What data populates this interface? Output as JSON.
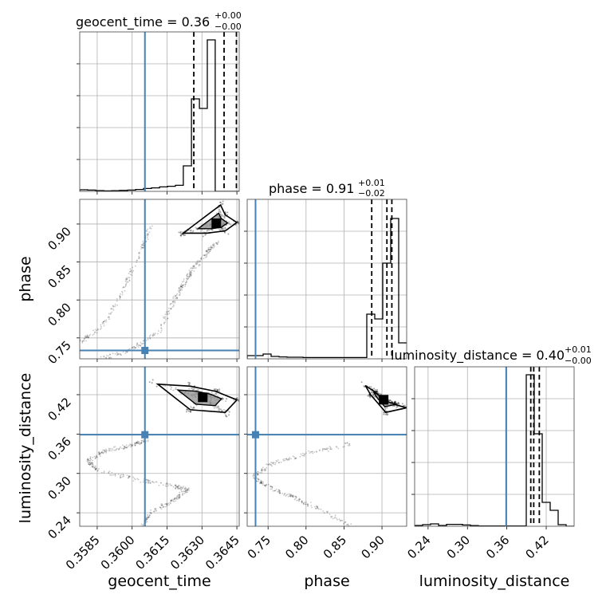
{
  "chart_data": {
    "type": "corner",
    "parameters": [
      "geocent_time",
      "phase",
      "luminosity_distance"
    ],
    "truths": {
      "geocent_time": 0.36055,
      "phase": 0.7335,
      "luminosity_distance": 0.359
    },
    "truth_color": "#4682b4",
    "grid": true,
    "titles": {
      "geocent_time": {
        "text": "geocent_time = 0.36",
        "plus": "+0.00",
        "minus": "−0.00"
      },
      "phase": {
        "text": "phase = 0.91",
        "plus": "+0.01",
        "minus": "−0.02"
      },
      "luminosity_distance": {
        "text": "luminosity_distance = 0.40",
        "plus": "+0.01",
        "minus": "−0.00"
      }
    },
    "axes": {
      "geocent_time": {
        "lim": [
          0.35775,
          0.3646
        ],
        "ticks": [
          0.3585,
          0.36,
          0.3615,
          0.363,
          0.3645
        ],
        "tick_labels": [
          "0.3585",
          "0.3600",
          "0.3615",
          "0.3630",
          "0.3645"
        ]
      },
      "phase": {
        "lim": [
          0.7225,
          0.9325
        ],
        "ticks": [
          0.75,
          0.8,
          0.85,
          0.9
        ],
        "tick_labels": [
          "0.75",
          "0.80",
          "0.85",
          "0.90"
        ]
      },
      "luminosity_distance": {
        "lim": [
          0.2195,
          0.4625
        ],
        "ticks": [
          0.24,
          0.3,
          0.36,
          0.42
        ],
        "tick_labels": [
          "0.24",
          "0.30",
          "0.36",
          "0.42"
        ]
      }
    },
    "histograms": {
      "geocent_time": {
        "edges": [
          0.35775,
          0.35809,
          0.35844,
          0.35878,
          0.35912,
          0.35946,
          0.35981,
          0.36015,
          0.36049,
          0.36083,
          0.36118,
          0.36152,
          0.36186,
          0.3622,
          0.36255,
          0.36289,
          0.36323,
          0.36357,
          0.36392,
          0.36426,
          0.3646
        ],
        "counts": [
          0.01,
          0.008,
          0.005,
          0.003,
          0.004,
          0.006,
          0.008,
          0.012,
          0.018,
          0.022,
          0.028,
          0.032,
          0.038,
          0.16,
          0.58,
          0.52,
          0.95,
          0.0,
          0.0,
          0.0
        ],
        "quantiles": [
          0.36265,
          0.36395,
          0.36448
        ]
      },
      "phase": {
        "edges": [
          0.7225,
          0.733,
          0.7435,
          0.754,
          0.7645,
          0.775,
          0.7855,
          0.796,
          0.8065,
          0.817,
          0.8275,
          0.838,
          0.8485,
          0.859,
          0.8695,
          0.88,
          0.8905,
          0.901,
          0.9115,
          0.922,
          0.9325
        ],
        "counts": [
          0.02,
          0.02,
          0.03,
          0.015,
          0.012,
          0.01,
          0.01,
          0.008,
          0.008,
          0.008,
          0.008,
          0.008,
          0.008,
          0.008,
          0.008,
          0.28,
          0.25,
          0.6,
          0.88,
          0.1
        ],
        "quantiles": [
          0.8865,
          0.9065,
          0.913
        ]
      },
      "luminosity_distance": {
        "edges": [
          0.2195,
          0.2317,
          0.2438,
          0.256,
          0.2681,
          0.2803,
          0.2924,
          0.3046,
          0.3167,
          0.3289,
          0.341,
          0.3532,
          0.3653,
          0.3775,
          0.3896,
          0.4018,
          0.4139,
          0.4261,
          0.4382,
          0.4504,
          0.4625
        ],
        "counts": [
          0.005,
          0.01,
          0.015,
          0.005,
          0.012,
          0.012,
          0.008,
          0.004,
          0.002,
          0.002,
          0.002,
          0.002,
          0.002,
          0.002,
          0.95,
          0.58,
          0.15,
          0.1,
          0.01,
          0.0
        ],
        "quantiles": [
          0.3965,
          0.401,
          0.4095
        ]
      }
    },
    "scatter_2d": {
      "phase_vs_geocent_time": {
        "track": [
          [
            0.35775,
            0.744
          ],
          [
            0.3587,
            0.765
          ],
          [
            0.3596,
            0.81
          ],
          [
            0.3603,
            0.86
          ],
          [
            0.3608,
            0.897
          ]
        ],
        "track2": [
          [
            0.3587,
            0.7225
          ],
          [
            0.36,
            0.735
          ],
          [
            0.3612,
            0.76
          ],
          [
            0.3618,
            0.8
          ],
          [
            0.3622,
            0.82
          ],
          [
            0.3626,
            0.84
          ],
          [
            0.3632,
            0.862
          ],
          [
            0.3637,
            0.877
          ]
        ],
        "cluster": [
          [
            0.3622,
            0.888
          ],
          [
            0.3632,
            0.888
          ],
          [
            0.364,
            0.891
          ],
          [
            0.3645,
            0.902
          ],
          [
            0.364,
            0.912
          ],
          [
            0.3638,
            0.925
          ]
        ]
      },
      "luminosity_distance_vs_geocent_time": {
        "track": [
          [
            0.3604,
            0.2195
          ],
          [
            0.3608,
            0.24
          ],
          [
            0.3618,
            0.26
          ],
          [
            0.3624,
            0.276
          ],
          [
            0.3618,
            0.28
          ],
          [
            0.3603,
            0.29
          ],
          [
            0.3585,
            0.305
          ],
          [
            0.3581,
            0.32
          ],
          [
            0.3589,
            0.335
          ],
          [
            0.36,
            0.343
          ],
          [
            0.3606,
            0.35
          ]
        ],
        "cluster": [
          [
            0.3611,
            0.436
          ],
          [
            0.3625,
            0.433
          ],
          [
            0.3636,
            0.425
          ],
          [
            0.3645,
            0.412
          ],
          [
            0.364,
            0.393
          ],
          [
            0.3625,
            0.397
          ]
        ]
      },
      "luminosity_distance_vs_phase": {
        "track": [
          [
            0.86,
            0.2195
          ],
          [
            0.81,
            0.25
          ],
          [
            0.78,
            0.265
          ],
          [
            0.75,
            0.28
          ],
          [
            0.73,
            0.295
          ],
          [
            0.755,
            0.315
          ],
          [
            0.8,
            0.33
          ],
          [
            0.86,
            0.345
          ]
        ],
        "cluster": [
          [
            0.878,
            0.434
          ],
          [
            0.89,
            0.425
          ],
          [
            0.905,
            0.41
          ],
          [
            0.92,
            0.404
          ],
          [
            0.9325,
            0.4
          ],
          [
            0.905,
            0.393
          ],
          [
            0.885,
            0.42
          ]
        ]
      }
    }
  }
}
